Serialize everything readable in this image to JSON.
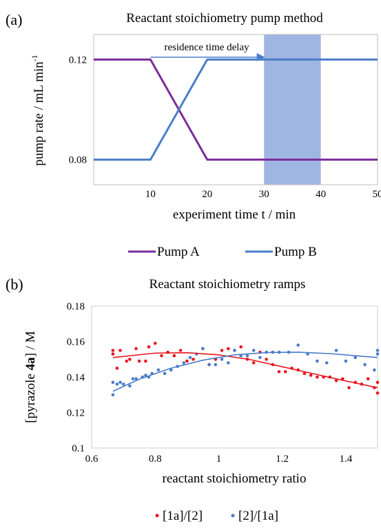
{
  "colors": {
    "pump_a": "#7b2a9b",
    "pump_b": "#4a7cc9",
    "shade": "#9fb6e2",
    "red": "#e8141e",
    "blue": "#4a7cc9"
  },
  "chart_data": [
    {
      "panel": "(a)",
      "type": "line",
      "title": "Reactant stoichiometry pump method",
      "xlabel": "experiment time t / min",
      "ylabel": "pump rate / mL min",
      "ylabel_sup": "-1",
      "xlim": [
        0,
        50
      ],
      "ylim": [
        0.07,
        0.13
      ],
      "xticks": [
        "10",
        "20",
        "30",
        "40",
        "50"
      ],
      "xtick_values": [
        10,
        20,
        30,
        40,
        50
      ],
      "yticks": [
        "0.12",
        "0.08"
      ],
      "ytick_values": [
        0.12,
        0.08
      ],
      "shaded_region": [
        30,
        40
      ],
      "annotation": "residence time delay",
      "annotation_arrow_x": [
        10,
        30
      ],
      "legend_position": "bottom",
      "grid": false,
      "series": [
        {
          "name": "Pump A",
          "x": [
            0,
            10,
            20,
            50
          ],
          "y": [
            0.12,
            0.12,
            0.08,
            0.08
          ]
        },
        {
          "name": "Pump B",
          "x": [
            0,
            10,
            20,
            50
          ],
          "y": [
            0.08,
            0.08,
            0.12,
            0.12
          ]
        }
      ]
    },
    {
      "panel": "(b)",
      "type": "scatter",
      "title": "Reactant stoichiometry ramps",
      "xlabel": "reactant stoichiometry ratio",
      "ylabel_pre": "[pyrazole ",
      "ylabel_bold": "4a",
      "ylabel_post": "] / M",
      "xlim": [
        0.6,
        1.5
      ],
      "ylim": [
        0.1,
        0.18
      ],
      "xticks": [
        "0.6",
        "0.8",
        "1",
        "1.2",
        "1.4"
      ],
      "xtick_values": [
        0.6,
        0.8,
        1.0,
        1.2,
        1.4
      ],
      "yticks": [
        "0.1",
        "0.12",
        "0.14",
        "0.16",
        "0.18"
      ],
      "ytick_values": [
        0.1,
        0.12,
        0.14,
        0.16,
        0.18
      ],
      "legend_position": "bottom",
      "grid": false,
      "series": [
        {
          "name": "[1a]/[2]",
          "x": [
            0.667,
            0.667,
            0.68,
            0.69,
            0.71,
            0.72,
            0.74,
            0.75,
            0.77,
            0.78,
            0.8,
            0.82,
            0.84,
            0.86,
            0.88,
            0.9,
            0.92,
            0.95,
            0.97,
            0.99,
            1.01,
            1.03,
            1.05,
            1.07,
            1.09,
            1.11,
            1.13,
            1.15,
            1.17,
            1.19,
            1.21,
            1.23,
            1.25,
            1.27,
            1.29,
            1.31,
            1.33,
            1.35,
            1.37,
            1.39,
            1.41,
            1.43,
            1.45,
            1.47,
            1.49,
            1.5,
            1.5
          ],
          "y": [
            0.155,
            0.153,
            0.145,
            0.155,
            0.149,
            0.15,
            0.156,
            0.149,
            0.149,
            0.157,
            0.159,
            0.152,
            0.154,
            0.152,
            0.155,
            0.149,
            0.15,
            0.156,
            0.147,
            0.15,
            0.155,
            0.156,
            0.155,
            0.157,
            0.15,
            0.148,
            0.154,
            0.15,
            0.147,
            0.143,
            0.143,
            0.145,
            0.144,
            0.142,
            0.141,
            0.14,
            0.14,
            0.14,
            0.138,
            0.139,
            0.134,
            0.137,
            0.136,
            0.139,
            0.134,
            0.131,
            0.137
          ],
          "trend_x": [
            0.667,
            0.8,
            0.9,
            1.0,
            1.1,
            1.2,
            1.3,
            1.4,
            1.5
          ],
          "trend_y": [
            0.151,
            0.1535,
            0.1537,
            0.1525,
            0.1498,
            0.1458,
            0.1418,
            0.1378,
            0.134
          ]
        },
        {
          "name": "[2]/[1a]",
          "x": [
            0.667,
            0.667,
            0.68,
            0.69,
            0.7,
            0.72,
            0.73,
            0.74,
            0.76,
            0.77,
            0.78,
            0.79,
            0.81,
            0.83,
            0.85,
            0.87,
            0.89,
            0.91,
            0.93,
            0.95,
            0.97,
            0.99,
            1.01,
            1.03,
            1.05,
            1.07,
            1.09,
            1.11,
            1.13,
            1.15,
            1.17,
            1.19,
            1.22,
            1.25,
            1.28,
            1.31,
            1.34,
            1.37,
            1.4,
            1.43,
            1.46,
            1.49,
            1.5,
            1.5
          ],
          "y": [
            0.13,
            0.137,
            0.136,
            0.137,
            0.136,
            0.135,
            0.139,
            0.139,
            0.14,
            0.141,
            0.14,
            0.142,
            0.144,
            0.142,
            0.144,
            0.146,
            0.148,
            0.151,
            0.153,
            0.156,
            0.147,
            0.147,
            0.15,
            0.148,
            0.155,
            0.152,
            0.152,
            0.155,
            0.151,
            0.154,
            0.154,
            0.154,
            0.154,
            0.158,
            0.153,
            0.149,
            0.148,
            0.155,
            0.149,
            0.151,
            0.147,
            0.144,
            0.153,
            0.155
          ],
          "trend_x": [
            0.667,
            0.75,
            0.85,
            0.95,
            1.05,
            1.15,
            1.25,
            1.35,
            1.5
          ],
          "trend_y": [
            0.132,
            0.1388,
            0.145,
            0.1495,
            0.1525,
            0.1538,
            0.154,
            0.1532,
            0.151
          ]
        }
      ]
    }
  ]
}
